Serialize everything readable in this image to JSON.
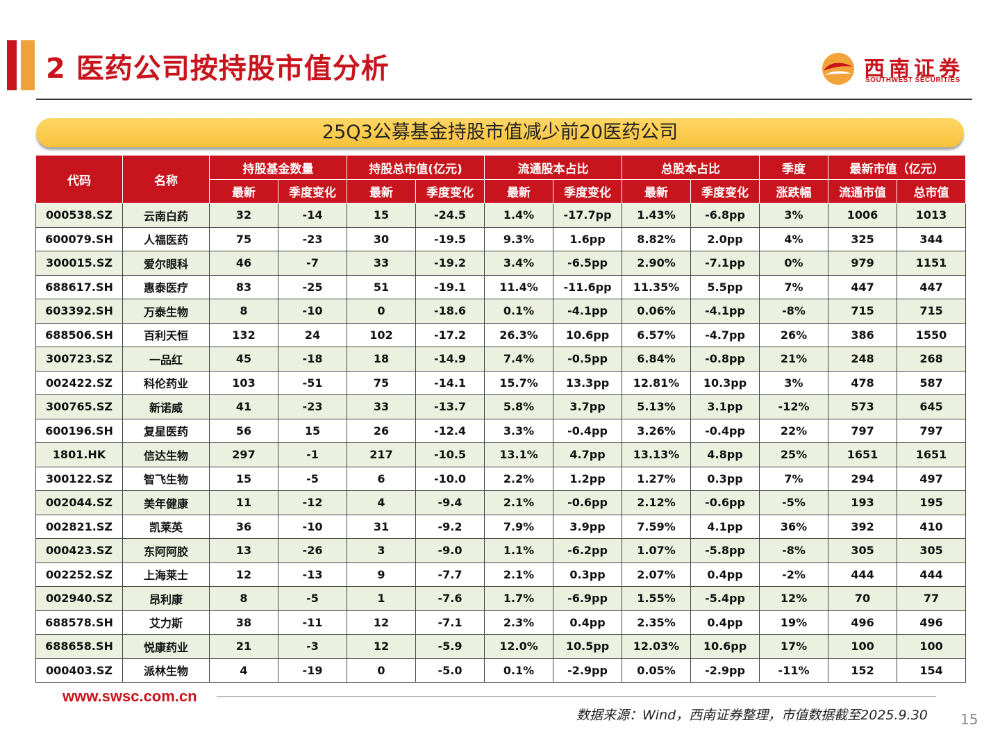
{
  "page": {
    "title": "2 医药公司按持股市值分析",
    "number": "15"
  },
  "logo": {
    "cn": "西南证券",
    "en": "SOUTHWEST SECURITIES"
  },
  "banner": "25Q3公募基金持股市值减少前20医药公司",
  "colors": {
    "header_red": "#c8141c",
    "banner_gold": "#f7c23a",
    "row_green": "#ebf1de"
  },
  "table": {
    "group_headers": {
      "code": "代码",
      "name": "名称",
      "fund_count": "持股基金数量",
      "holding_value": "持股总市值(亿元)",
      "float_ratio": "流通股本占比",
      "total_ratio": "总股本占比",
      "quarter": "季度",
      "market_value": "最新市值（亿元）"
    },
    "sub_headers": {
      "latest": "最新",
      "qoq": "季度变化",
      "change": "涨跌幅",
      "float_mv": "流通市值",
      "total_mv": "总市值"
    },
    "rows": [
      [
        "000538.SZ",
        "云南白药",
        "32",
        "-14",
        "15",
        "-24.5",
        "1.4%",
        "-17.7pp",
        "1.43%",
        "-6.8pp",
        "3%",
        "1006",
        "1013"
      ],
      [
        "600079.SH",
        "人福医药",
        "75",
        "-23",
        "30",
        "-19.5",
        "9.3%",
        "1.6pp",
        "8.82%",
        "2.0pp",
        "4%",
        "325",
        "344"
      ],
      [
        "300015.SZ",
        "爱尔眼科",
        "46",
        "-7",
        "33",
        "-19.2",
        "3.4%",
        "-6.5pp",
        "2.90%",
        "-7.1pp",
        "0%",
        "979",
        "1151"
      ],
      [
        "688617.SH",
        "惠泰医疗",
        "83",
        "-25",
        "51",
        "-19.1",
        "11.4%",
        "-11.6pp",
        "11.35%",
        "5.5pp",
        "7%",
        "447",
        "447"
      ],
      [
        "603392.SH",
        "万泰生物",
        "8",
        "-10",
        "0",
        "-18.6",
        "0.1%",
        "-4.1pp",
        "0.06%",
        "-4.1pp",
        "-8%",
        "715",
        "715"
      ],
      [
        "688506.SH",
        "百利天恒",
        "132",
        "24",
        "102",
        "-17.2",
        "26.3%",
        "10.6pp",
        "6.57%",
        "-4.7pp",
        "26%",
        "386",
        "1550"
      ],
      [
        "300723.SZ",
        "一品红",
        "45",
        "-18",
        "18",
        "-14.9",
        "7.4%",
        "-0.5pp",
        "6.84%",
        "-0.8pp",
        "21%",
        "248",
        "268"
      ],
      [
        "002422.SZ",
        "科伦药业",
        "103",
        "-51",
        "75",
        "-14.1",
        "15.7%",
        "13.3pp",
        "12.81%",
        "10.3pp",
        "3%",
        "478",
        "587"
      ],
      [
        "300765.SZ",
        "新诺威",
        "41",
        "-23",
        "33",
        "-13.7",
        "5.8%",
        "3.7pp",
        "5.13%",
        "3.1pp",
        "-12%",
        "573",
        "645"
      ],
      [
        "600196.SH",
        "复星医药",
        "56",
        "15",
        "26",
        "-12.4",
        "3.3%",
        "-0.4pp",
        "3.26%",
        "-0.4pp",
        "22%",
        "797",
        "797"
      ],
      [
        "1801.HK",
        "信达生物",
        "297",
        "-1",
        "217",
        "-10.5",
        "13.1%",
        "4.7pp",
        "13.13%",
        "4.8pp",
        "25%",
        "1651",
        "1651"
      ],
      [
        "300122.SZ",
        "智飞生物",
        "15",
        "-5",
        "6",
        "-10.0",
        "2.2%",
        "1.2pp",
        "1.27%",
        "0.3pp",
        "7%",
        "294",
        "497"
      ],
      [
        "002044.SZ",
        "美年健康",
        "11",
        "-12",
        "4",
        "-9.4",
        "2.1%",
        "-0.6pp",
        "2.12%",
        "-0.6pp",
        "-5%",
        "193",
        "195"
      ],
      [
        "002821.SZ",
        "凯莱英",
        "36",
        "-10",
        "31",
        "-9.2",
        "7.9%",
        "3.9pp",
        "7.59%",
        "4.1pp",
        "36%",
        "392",
        "410"
      ],
      [
        "000423.SZ",
        "东阿阿胶",
        "13",
        "-26",
        "3",
        "-9.0",
        "1.1%",
        "-6.2pp",
        "1.07%",
        "-5.8pp",
        "-8%",
        "305",
        "305"
      ],
      [
        "002252.SZ",
        "上海莱士",
        "12",
        "-13",
        "9",
        "-7.7",
        "2.1%",
        "0.3pp",
        "2.07%",
        "0.4pp",
        "-2%",
        "444",
        "444"
      ],
      [
        "002940.SZ",
        "昂利康",
        "8",
        "-5",
        "1",
        "-7.6",
        "1.7%",
        "-6.9pp",
        "1.55%",
        "-5.4pp",
        "12%",
        "70",
        "77"
      ],
      [
        "688578.SH",
        "艾力斯",
        "38",
        "-11",
        "12",
        "-7.1",
        "2.3%",
        "0.4pp",
        "2.35%",
        "0.4pp",
        "19%",
        "496",
        "496"
      ],
      [
        "688658.SH",
        "悦康药业",
        "21",
        "-3",
        "12",
        "-5.9",
        "12.0%",
        "10.5pp",
        "12.03%",
        "10.6pp",
        "17%",
        "100",
        "100"
      ],
      [
        "000403.SZ",
        "派林生物",
        "4",
        "-19",
        "0",
        "-5.0",
        "0.1%",
        "-2.9pp",
        "0.05%",
        "-2.9pp",
        "-11%",
        "152",
        "154"
      ]
    ]
  },
  "footer": {
    "url": "www.swsc.com.cn",
    "source": "数据来源：Wind，西南证券整理，市值数据截至2025.9.30"
  }
}
